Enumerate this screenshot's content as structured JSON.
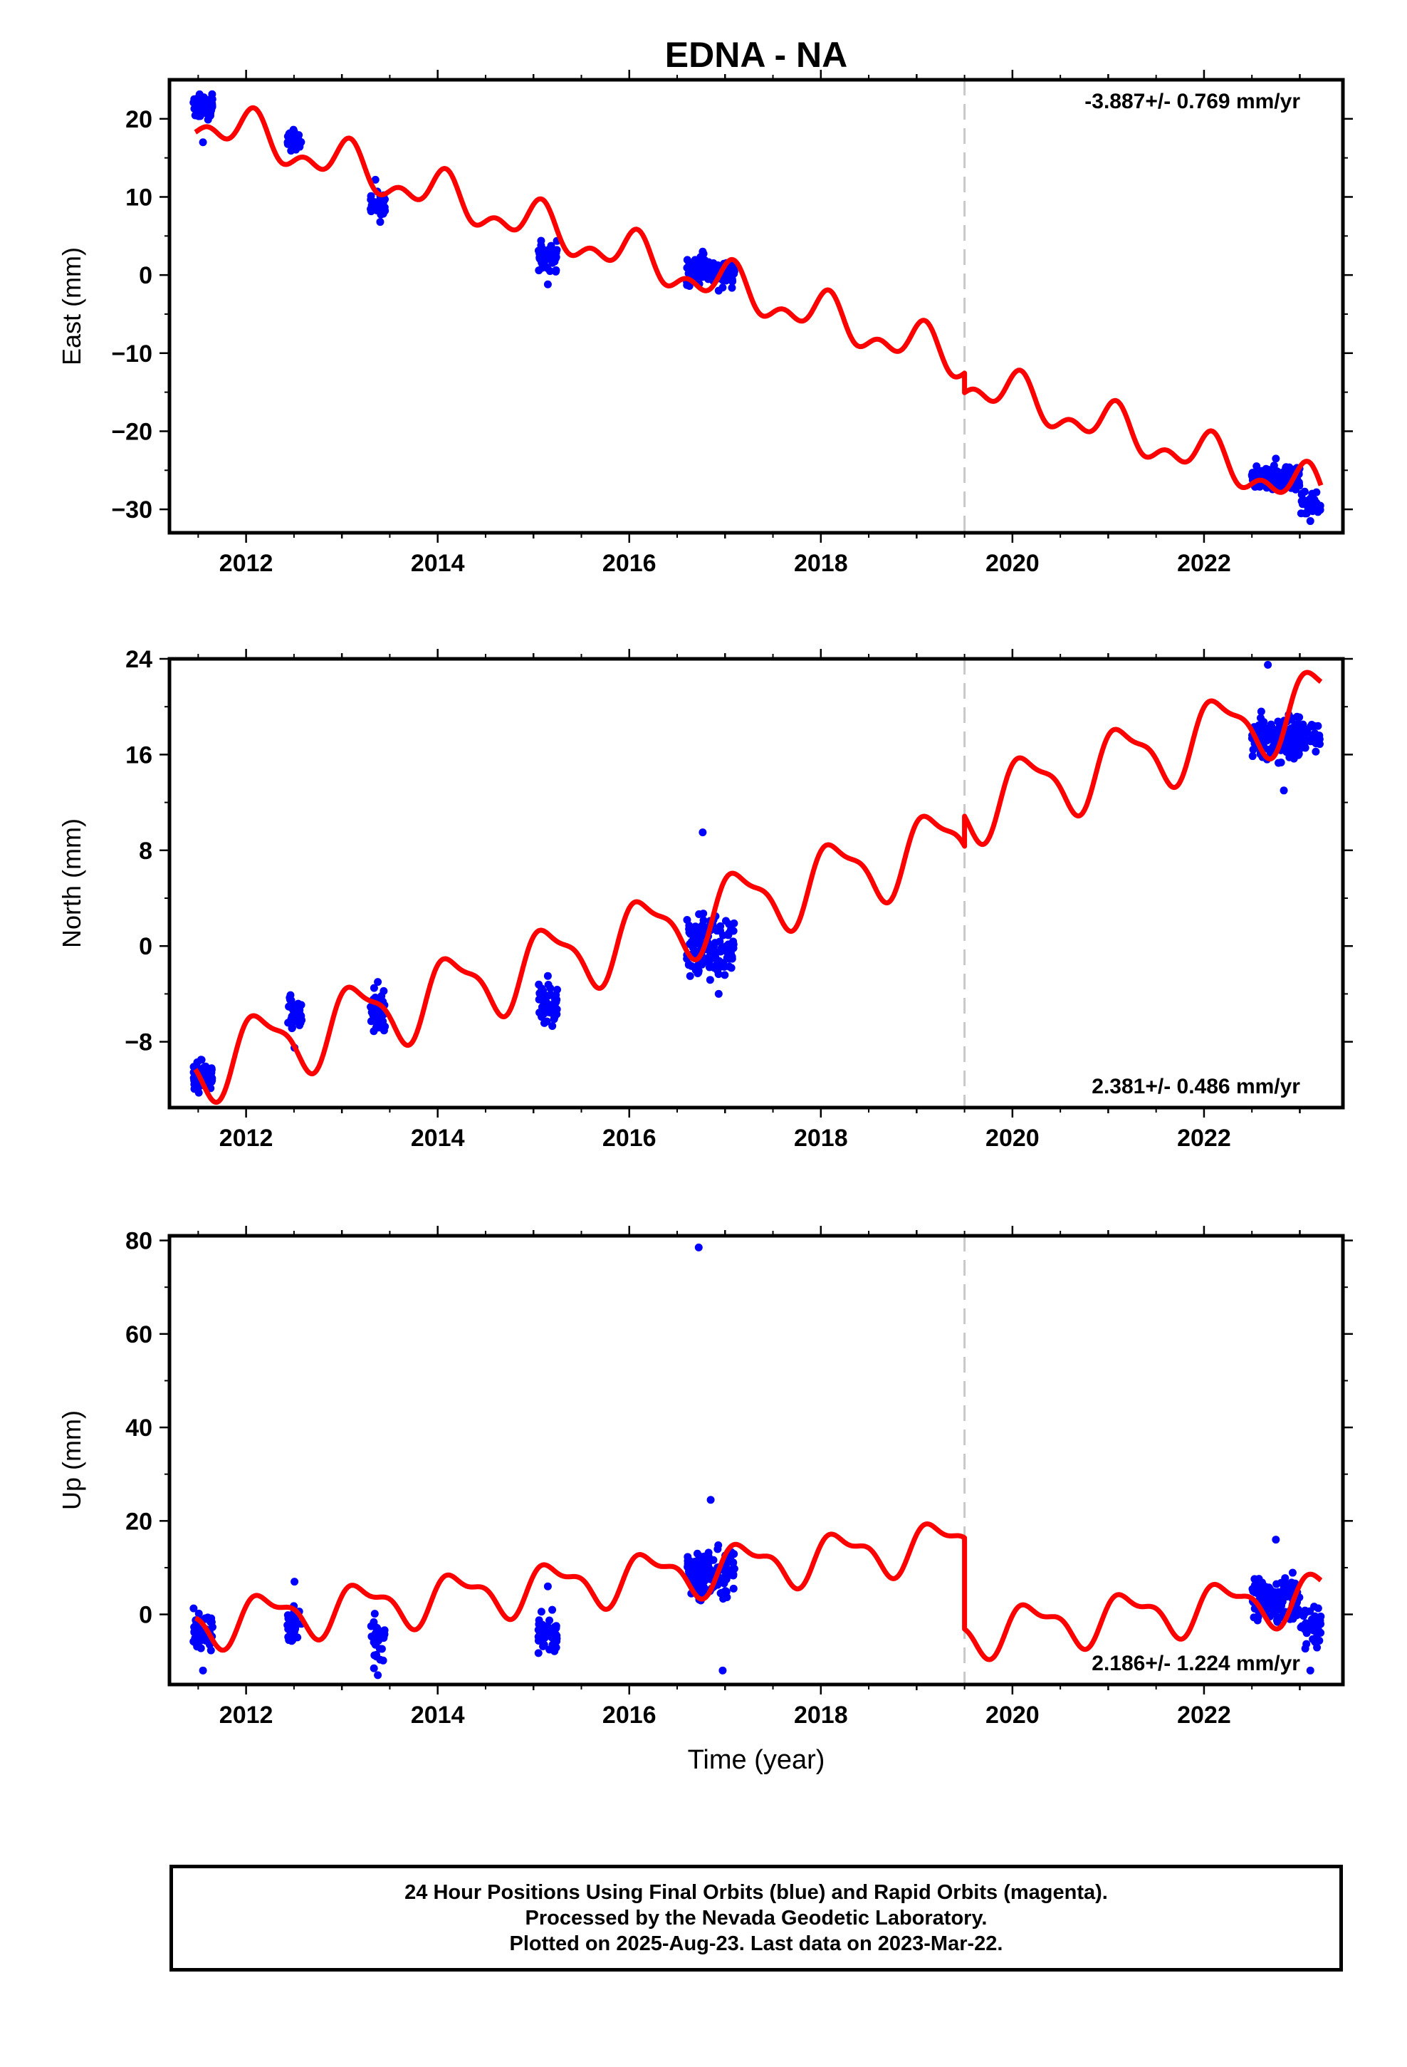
{
  "chart_data": [
    {
      "type": "scatter",
      "panel": "east",
      "title": "EDNA - NA",
      "ylabel": "East (mm)",
      "xlabel": "",
      "xlim": [
        2011.2,
        2023.45
      ],
      "ylim": [
        -33,
        25
      ],
      "xticks": [
        2012,
        2014,
        2016,
        2018,
        2020,
        2022
      ],
      "yticks": [
        -30,
        -20,
        -10,
        0,
        10,
        20
      ],
      "rate_label": "-3.887+/- 0.769 mm/yr",
      "rate_position": "top-right",
      "break_epoch": 2019.5,
      "model": {
        "trend_at_2011.5": 20,
        "rate": -3.887,
        "amp1": 2.2,
        "phase1": 1.2,
        "amp2": 1.5,
        "phase2": 0.4,
        "offset_at_break": -2.5
      },
      "clusters": [
        {
          "x": [
            2011.45,
            2011.65
          ],
          "center": 21.5,
          "spread": 1.2,
          "n": 70,
          "outliers": [
            17.0
          ]
        },
        {
          "x": [
            2012.43,
            2012.58
          ],
          "center": 17.3,
          "spread": 1.0,
          "n": 40,
          "outliers": []
        },
        {
          "x": [
            2013.3,
            2013.45
          ],
          "center": 9.0,
          "spread": 1.2,
          "n": 40,
          "outliers": [
            12.2,
            6.8
          ]
        },
        {
          "x": [
            2015.05,
            2015.25
          ],
          "center": 2.5,
          "spread": 1.5,
          "n": 50,
          "outliers": [
            -1.2
          ]
        },
        {
          "x": [
            2016.6,
            2017.1
          ],
          "center": 0.5,
          "spread": 1.4,
          "n": 140,
          "outliers": [
            3.0,
            -2.0
          ]
        },
        {
          "x": [
            2022.5,
            2023.0
          ],
          "center": -26.0,
          "spread": 1.2,
          "n": 140,
          "outliers": [
            -23.5
          ]
        },
        {
          "x": [
            2023.0,
            2023.22
          ],
          "center": -29.5,
          "spread": 1.2,
          "n": 40,
          "outliers": [
            -31.5
          ]
        }
      ]
    },
    {
      "type": "scatter",
      "panel": "north",
      "title": "",
      "ylabel": "North (mm)",
      "xlabel": "",
      "xlim": [
        2011.2,
        2023.45
      ],
      "ylim": [
        -13.5,
        24
      ],
      "xticks": [
        2012,
        2014,
        2016,
        2018,
        2020,
        2022
      ],
      "yticks": [
        -8,
        0,
        8,
        16,
        24
      ],
      "rate_label": "2.381+/- 0.486 mm/yr",
      "rate_position": "bottom-right",
      "break_epoch": 2019.5,
      "model": {
        "trend_at_2011.5": -10,
        "rate": 2.381,
        "amp1": 2.8,
        "phase1": 0.6,
        "amp2": 0.9,
        "phase2": 1.8,
        "offset_at_break": 2.5
      },
      "clusters": [
        {
          "x": [
            2011.45,
            2011.65
          ],
          "center": -11.0,
          "spread": 1.0,
          "n": 70,
          "outliers": []
        },
        {
          "x": [
            2012.43,
            2012.58
          ],
          "center": -5.5,
          "spread": 1.2,
          "n": 40,
          "outliers": [
            -8.5
          ]
        },
        {
          "x": [
            2013.3,
            2013.45
          ],
          "center": -5.5,
          "spread": 1.5,
          "n": 40,
          "outliers": [
            -3.0
          ]
        },
        {
          "x": [
            2015.05,
            2015.25
          ],
          "center": -5.0,
          "spread": 1.2,
          "n": 50,
          "outliers": [
            -2.5
          ]
        },
        {
          "x": [
            2016.6,
            2017.1
          ],
          "center": 0.0,
          "spread": 2.0,
          "n": 140,
          "outliers": [
            9.5,
            -4.0
          ]
        },
        {
          "x": [
            2022.5,
            2023.0
          ],
          "center": 17.5,
          "spread": 1.8,
          "n": 140,
          "outliers": [
            23.5,
            13.0
          ]
        },
        {
          "x": [
            2023.0,
            2023.22
          ],
          "center": 17.5,
          "spread": 1.0,
          "n": 40,
          "outliers": []
        }
      ]
    },
    {
      "type": "scatter",
      "panel": "up",
      "title": "",
      "ylabel": "Up (mm)",
      "xlabel": "Time (year)",
      "xlim": [
        2011.2,
        2023.45
      ],
      "ylim": [
        -15,
        81
      ],
      "xticks": [
        2012,
        2014,
        2016,
        2018,
        2020,
        2022
      ],
      "yticks": [
        0,
        20,
        40,
        60,
        80
      ],
      "rate_label": "2.186+/- 1.224 mm/yr",
      "rate_position": "bottom-right",
      "break_epoch": 2019.5,
      "model": {
        "trend_at_2011.5": -2,
        "rate": 2.186,
        "amp1": 4.5,
        "phase1": 0.2,
        "amp2": 2.0,
        "phase2": 1.1,
        "offset_at_break": -19.5
      },
      "clusters": [
        {
          "x": [
            2011.45,
            2011.65
          ],
          "center": -3.5,
          "spread": 3.5,
          "n": 60,
          "outliers": [
            -12.0
          ]
        },
        {
          "x": [
            2012.43,
            2012.58
          ],
          "center": -2.0,
          "spread": 3.0,
          "n": 40,
          "outliers": [
            7.0
          ]
        },
        {
          "x": [
            2013.3,
            2013.45
          ],
          "center": -6.0,
          "spread": 3.5,
          "n": 40,
          "outliers": [
            -13.0
          ]
        },
        {
          "x": [
            2015.05,
            2015.25
          ],
          "center": -4.0,
          "spread": 3.0,
          "n": 50,
          "outliers": [
            6.0
          ]
        },
        {
          "x": [
            2016.6,
            2017.1
          ],
          "center": 9.0,
          "spread": 4.0,
          "n": 140,
          "outliers": [
            78.5,
            24.5,
            -12.0
          ]
        },
        {
          "x": [
            2022.5,
            2023.0
          ],
          "center": 3.0,
          "spread": 4.0,
          "n": 140,
          "outliers": [
            16.0
          ]
        },
        {
          "x": [
            2023.0,
            2023.22
          ],
          "center": -3.0,
          "spread": 4.0,
          "n": 40,
          "outliers": [
            -12.0
          ]
        }
      ]
    }
  ],
  "colors": {
    "data": "#0000ff",
    "model": "#ff0000",
    "break_line": "#c8c8c8",
    "axes": "#000000"
  },
  "footer": {
    "line1": "24 Hour Positions Using Final Orbits (blue) and Rapid Orbits (magenta).",
    "line2": "Processed by the Nevada Geodetic Laboratory.",
    "line3": "Plotted on 2025-Aug-23. Last data on 2023-Mar-22."
  }
}
